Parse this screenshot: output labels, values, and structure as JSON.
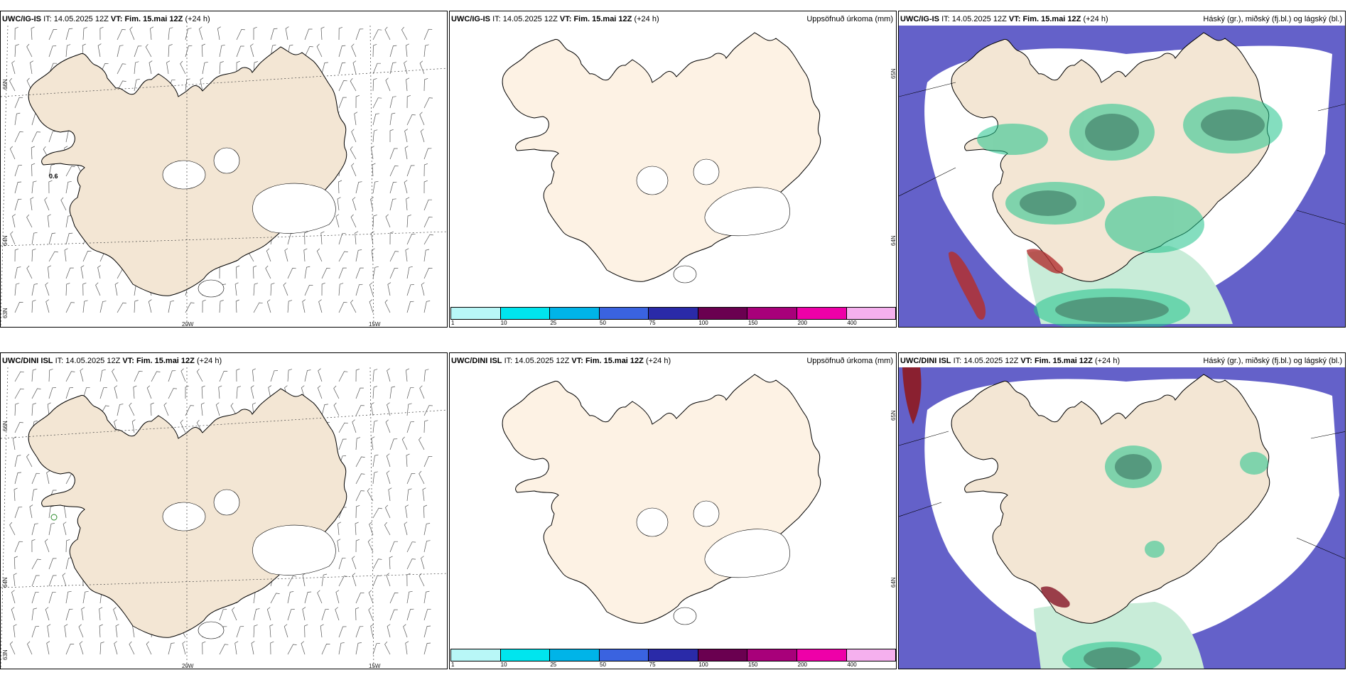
{
  "rows": [
    {
      "model": "UWC/IG-IS",
      "it_label": "IT:",
      "it_value": "14.05.2025 12Z",
      "vt_label": "VT:",
      "vt_value": "Fim. 15.mai 12Z",
      "lead": "(+24 h)",
      "station_value": "0.6"
    },
    {
      "model": "UWC/DINI ISL",
      "it_label": "IT:",
      "it_value": "14.05.2025 12Z",
      "vt_label": "VT:",
      "vt_value": "Fim. 15.mai 12Z",
      "lead": "(+24 h)",
      "station_value": ""
    }
  ],
  "precip_title": "Uppsöfnuð úrkoma (mm)",
  "cloud_title": "Háský (gr.), miðský (fj.bl.) og lágský (bl.)",
  "grid_labels": {
    "lat_66": "66N",
    "lat_64": "64N",
    "lat_63": "63N",
    "lon_20w": "20W",
    "lon_15w": "15W",
    "lat_65_center": "65N",
    "lat_64_center": "64N"
  },
  "colorbar": {
    "ticks": [
      "1",
      "10",
      "25",
      "50",
      "75",
      "100",
      "150",
      "200",
      "400"
    ],
    "colors": [
      "#b8f7f7",
      "#00e5ee",
      "#00b4e8",
      "#3a63e0",
      "#2a2aa8",
      "#6a0050",
      "#a8007a",
      "#ee00a8",
      "#f5b0ee"
    ]
  },
  "colors": {
    "land_wind": "#f3e6d4",
    "land_precip": "#fdf2e4",
    "ocean_cloud_low": "#6461c9",
    "cloud_mid": "#1fc28a",
    "cloud_high": "#b23030"
  }
}
